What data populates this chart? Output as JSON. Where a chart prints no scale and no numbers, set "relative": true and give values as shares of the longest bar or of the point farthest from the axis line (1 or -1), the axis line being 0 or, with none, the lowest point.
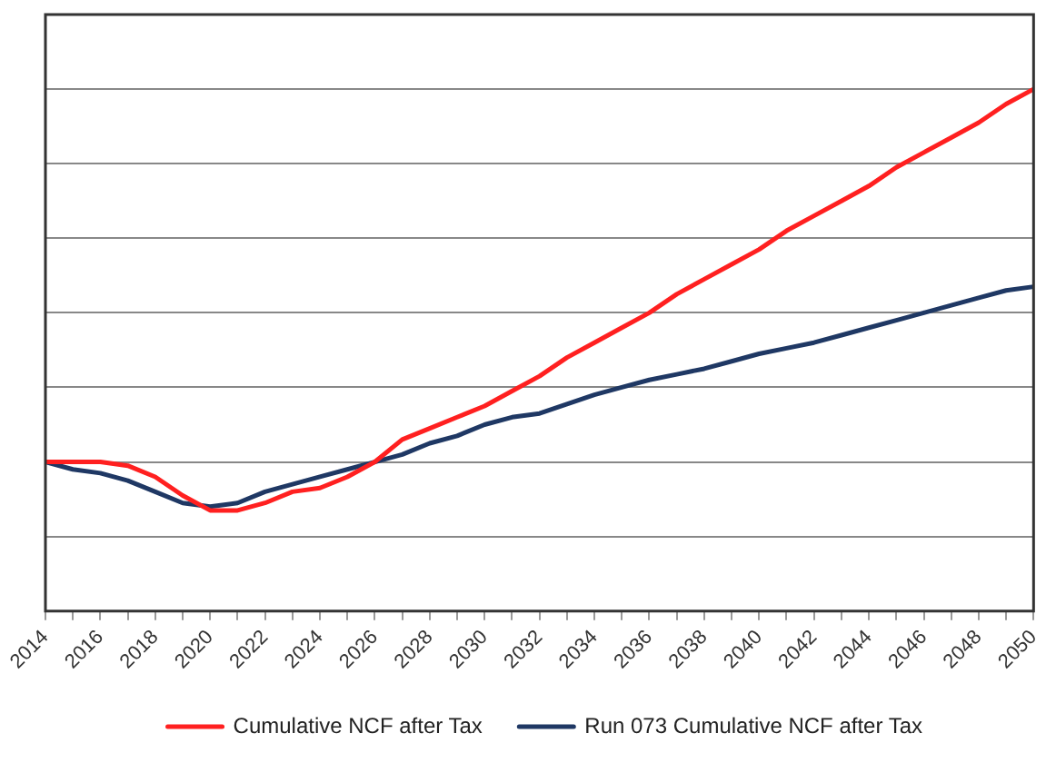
{
  "chart_data": {
    "type": "line",
    "relative": true,
    "grid": true,
    "legend": "bottom",
    "marker": "none",
    "line_style": "solid",
    "categories": [
      "2014",
      null,
      "2016",
      null,
      "2018",
      null,
      "2020",
      null,
      "2022",
      null,
      "2024",
      null,
      "2026",
      null,
      "2028",
      null,
      "2030",
      null,
      "2032",
      null,
      "2034",
      null,
      "2036",
      null,
      "2038",
      null,
      "2040",
      null,
      "2042",
      null,
      "2044",
      null,
      "2046",
      null,
      "2048",
      null,
      "2050"
    ],
    "series": [
      {
        "name": "Cumulative NCF after Tax",
        "color": "#ff2020",
        "values": [
          0,
          0,
          0,
          -0.01,
          -0.04,
          -0.09,
          -0.13,
          -0.13,
          -0.11,
          -0.08,
          -0.07,
          -0.04,
          0,
          0.06,
          0.09,
          0.12,
          0.15,
          0.19,
          0.23,
          0.28,
          0.32,
          0.36,
          0.4,
          0.45,
          0.49,
          0.53,
          0.57,
          0.62,
          0.66,
          0.7,
          0.74,
          0.79,
          0.83,
          0.87,
          0.91,
          0.96,
          1
        ]
      },
      {
        "name": "Run 073 Cumulative NCF after Tax",
        "color": "#1f3864",
        "values": [
          0,
          -0.02,
          -0.03,
          -0.05,
          -0.08,
          -0.11,
          -0.12,
          -0.11,
          -0.08,
          -0.06,
          -0.04,
          -0.02,
          0,
          0.02,
          0.05,
          0.07,
          0.1,
          0.12,
          0.13,
          0.155,
          0.18,
          0.2,
          0.22,
          0.235,
          0.25,
          0.27,
          0.29,
          0.305,
          0.32,
          0.34,
          0.36,
          0.38,
          0.4,
          0.42,
          0.44,
          0.46,
          0.47
        ]
      }
    ]
  }
}
